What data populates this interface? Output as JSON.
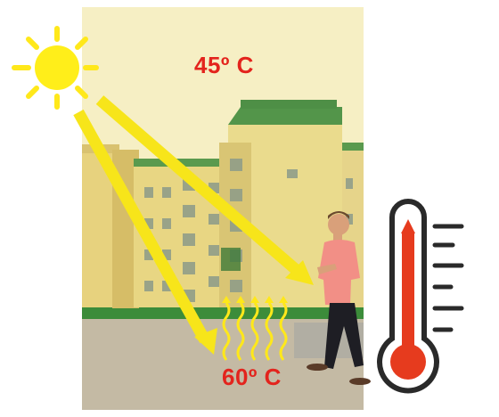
{
  "labels": {
    "air_temperature": "45º C",
    "ground_temperature": "60º C"
  },
  "colors": {
    "temperature_text": "#e3241d",
    "sun": "#ffee1a",
    "sun_rays": "#f7e51a",
    "heat_waves": "#ffe81a",
    "thermometer_fill": "#e63b1e",
    "thermometer_outline": "#2a2a2a"
  },
  "icons": {
    "sun": "sun-icon",
    "thermometer": "thermometer-icon",
    "heat_waves": "heat-waves-icon"
  }
}
